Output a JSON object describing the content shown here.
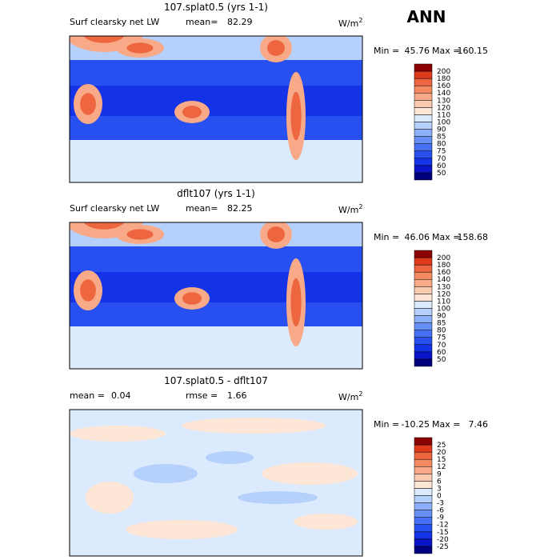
{
  "header": {
    "title": "ANN"
  },
  "panels": [
    {
      "title": "107.splat0.5 (yrs 1-1)",
      "field": "Surf clearsky net LW",
      "stats": [
        {
          "label": "mean=",
          "value": 82.29
        }
      ],
      "units": "W/m",
      "units_sup": "2",
      "min_label": "Min =",
      "min": 45.76,
      "max_label": "Max =",
      "max": 160.15,
      "levels": [
        200,
        180,
        160,
        140,
        130,
        120,
        110,
        100,
        90,
        85,
        80,
        75,
        70,
        60,
        50
      ],
      "colors": [
        "#00007f",
        "#0a14c8",
        "#1432e6",
        "#2850f0",
        "#4670f5",
        "#6690f7",
        "#8cb0f9",
        "#b4d0fb",
        "#dceafd",
        "#fde6d6",
        "#fbcbb0",
        "#f8aa88",
        "#f48a62",
        "#ee6640",
        "#e03a1c",
        "#8b0000"
      ]
    },
    {
      "title": "dflt107 (yrs 1-1)",
      "field": "Surf clearsky net LW",
      "stats": [
        {
          "label": "mean=",
          "value": 82.25
        }
      ],
      "units": "W/m",
      "units_sup": "2",
      "min_label": "Min =",
      "min": 46.06,
      "max_label": "Max =",
      "max": 158.68,
      "levels": [
        200,
        180,
        160,
        140,
        130,
        120,
        110,
        100,
        90,
        85,
        80,
        75,
        70,
        60,
        50
      ],
      "colors": [
        "#00007f",
        "#0a14c8",
        "#1432e6",
        "#2850f0",
        "#4670f5",
        "#6690f7",
        "#8cb0f9",
        "#b4d0fb",
        "#dceafd",
        "#fde6d6",
        "#fbcbb0",
        "#f8aa88",
        "#f48a62",
        "#ee6640",
        "#e03a1c",
        "#8b0000"
      ]
    },
    {
      "title": "107.splat0.5 - dflt107",
      "field": null,
      "stats": [
        {
          "label": "mean =",
          "value": 0.04
        },
        {
          "label": "rmse =",
          "value": 1.66
        }
      ],
      "units": "W/m",
      "units_sup": "2",
      "min_label": "Min =",
      "min": -10.25,
      "max_label": "Max =",
      "max": 7.46,
      "levels": [
        25,
        20,
        15,
        12,
        9,
        6,
        3,
        0,
        -3,
        -6,
        -9,
        -12,
        -15,
        -20,
        -25
      ],
      "colors": [
        "#00007f",
        "#0a14c8",
        "#1432e6",
        "#2850f0",
        "#4670f5",
        "#6690f7",
        "#8cb0f9",
        "#b4d0fb",
        "#dceafd",
        "#fde6d6",
        "#fbcbb0",
        "#f8aa88",
        "#f48a62",
        "#ee6640",
        "#e03a1c",
        "#8b0000"
      ]
    }
  ]
}
